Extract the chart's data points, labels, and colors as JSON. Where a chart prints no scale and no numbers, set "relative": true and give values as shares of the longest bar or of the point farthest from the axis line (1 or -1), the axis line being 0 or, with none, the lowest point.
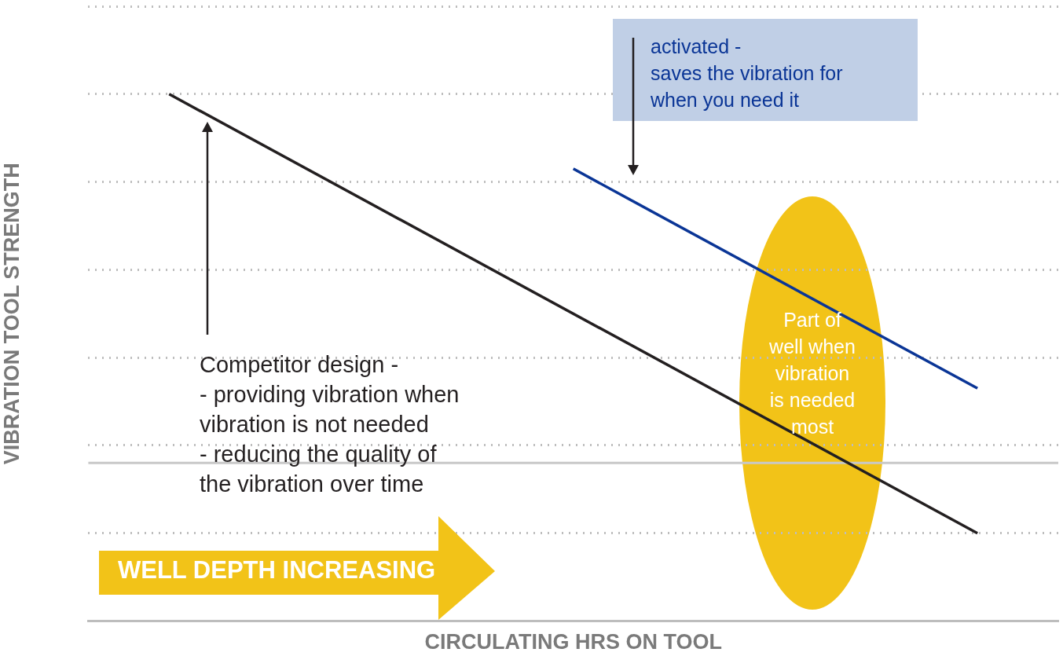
{
  "chart_data": {
    "type": "line",
    "relative": true,
    "xlabel": "CIRCULATING HRS ON TOOL",
    "ylabel": "VIBRATION TOOL STRENGTH",
    "categories": [
      null,
      null,
      null,
      null,
      null,
      null,
      null,
      null,
      null,
      null,
      null,
      null,
      null,
      null,
      null,
      null,
      null,
      null,
      null,
      null,
      null,
      null,
      null,
      null,
      null
    ],
    "series": [
      {
        "color": "#231f20",
        "values": [
          null,
          null,
          1,
          null,
          null,
          null,
          null,
          null,
          null,
          null,
          null,
          null,
          null,
          null,
          null,
          null,
          null,
          null,
          null,
          null,
          null,
          null,
          0,
          null,
          null
        ]
      },
      {
        "color": "#0a3596",
        "values": [
          null,
          null,
          null,
          null,
          null,
          null,
          null,
          null,
          null,
          null,
          null,
          null,
          0.83,
          null,
          null,
          null,
          null,
          null,
          null,
          null,
          null,
          null,
          0.33,
          null,
          null
        ]
      }
    ],
    "ref_lines": [
      {
        "axis": "y",
        "value": 0.16,
        "color": "#c8c8c8"
      }
    ],
    "annotations": [
      "activated -\nsaves the vibration for\nwhen you need it",
      "Competitor design -\n- providing vibration when\nvibration is not needed\n- reducing the quality of\nthe vibration over time",
      "Part of\nwell when\nvibration\nis needed\nmost",
      "WELL DEPTH INCREASING"
    ],
    "grid": "y",
    "legend": false,
    "marker": "none",
    "line_style": "solid"
  }
}
